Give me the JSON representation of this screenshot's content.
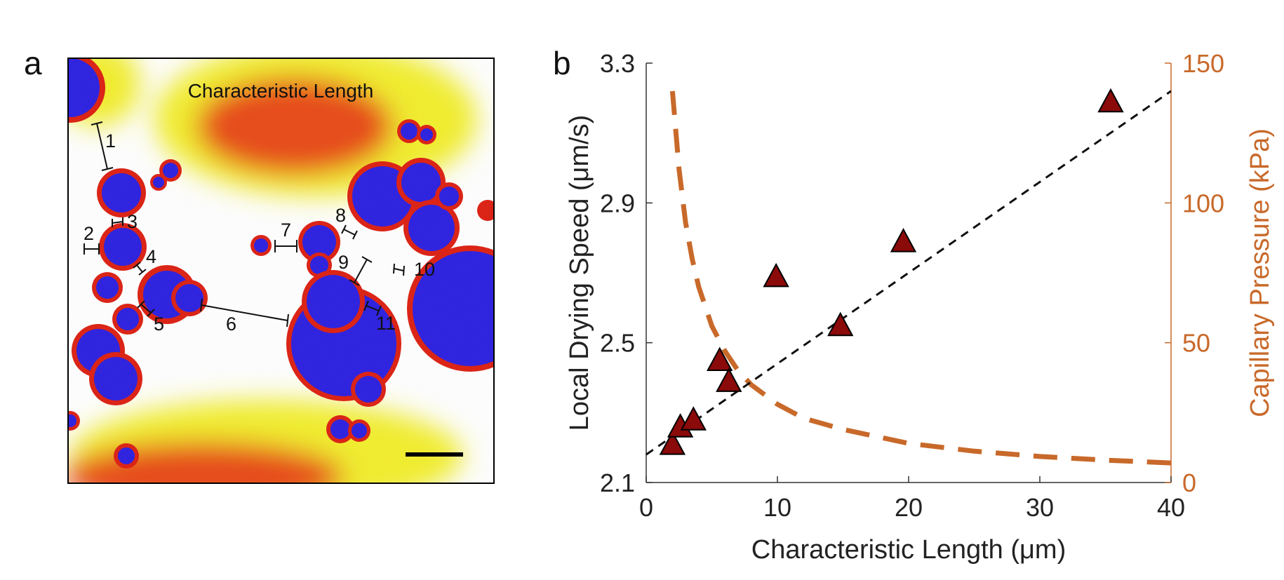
{
  "panel_a": {
    "letter": "a",
    "title": "Characteristic Length",
    "measurement_labels": [
      "1",
      "2",
      "3",
      "4",
      "5",
      "6",
      "7",
      "8",
      "9",
      "10",
      "11"
    ]
  },
  "panel_b": {
    "letter": "b"
  },
  "colors": {
    "marker_fill": "#8b0a0a",
    "marker_edge": "#000000",
    "fit_line": "#111111",
    "pressure_curve": "#c8692a",
    "right_axis": "#c8692a",
    "particle_blue": "#2a1ee0",
    "particle_halo": "#dc1e10",
    "haze_yellow": "#f2ee2a"
  },
  "chart_data": {
    "type": "scatter",
    "xlabel": "Characteristic Length (μm)",
    "ylabel": "Local Drying Speed (μm/s)",
    "y2label": "Capillary Pressure (kPa)",
    "xlim": [
      0,
      40
    ],
    "ylim": [
      2.1,
      3.3
    ],
    "y2lim": [
      0,
      150
    ],
    "xticks": [
      0,
      10,
      20,
      30,
      40
    ],
    "yticks": [
      "2.1",
      "2.5",
      "2.9",
      "3.3"
    ],
    "y2ticks": [
      0,
      50,
      100,
      150
    ],
    "grid": false,
    "series": [
      {
        "kind": "scatter",
        "marker": "triangle",
        "x": [
          2.0,
          2.6,
          3.6,
          5.6,
          6.3,
          9.9,
          14.8,
          19.6,
          35.4
        ],
        "y": [
          2.21,
          2.26,
          2.28,
          2.45,
          2.39,
          2.69,
          2.55,
          2.79,
          3.19
        ]
      },
      {
        "kind": "fit",
        "style": "dashed",
        "x": [
          0,
          40
        ],
        "y": [
          2.18,
          3.22
        ]
      },
      {
        "kind": "curve",
        "axis": "right",
        "style": "dashed",
        "x": [
          2,
          2.5,
          3,
          3.5,
          4,
          5,
          6,
          7,
          8,
          10,
          12,
          15,
          20,
          25,
          30,
          35,
          40
        ],
        "y": [
          140,
          112,
          93,
          80,
          70,
          56,
          47,
          40,
          35,
          28,
          23,
          19,
          14,
          11.2,
          9.3,
          8.0,
          7.0
        ]
      }
    ]
  }
}
